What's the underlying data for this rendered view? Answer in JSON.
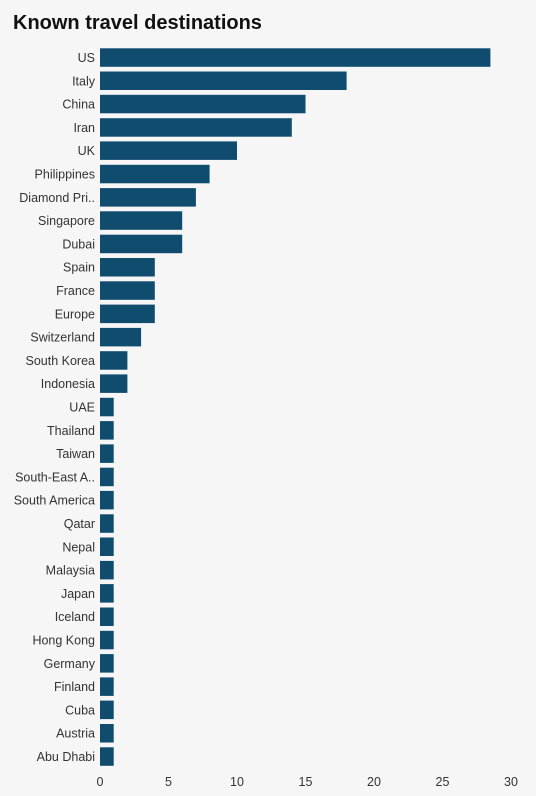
{
  "chart_data": {
    "type": "bar",
    "orientation": "horizontal",
    "title": "Known travel destinations",
    "xlabel": "",
    "ylabel": "",
    "xlim": [
      0,
      30
    ],
    "xticks": [
      "0",
      "5",
      "10",
      "15",
      "20",
      "25",
      "30"
    ],
    "grid": false,
    "bar_color": "#0f4c6e",
    "categories": [
      "US",
      "Italy",
      "China",
      "Iran",
      "UK",
      "Philippines",
      "Diamond Pri..",
      "Singapore",
      "Dubai",
      "Spain",
      "France",
      "Europe",
      "Switzerland",
      "South Korea",
      "Indonesia",
      "UAE",
      "Thailand",
      "Taiwan",
      "South-East A..",
      "South America",
      "Qatar",
      "Nepal",
      "Malaysia",
      "Japan",
      "Iceland",
      "Hong Kong",
      "Germany",
      "Finland",
      "Cuba",
      "Austria",
      "Abu Dhabi"
    ],
    "values": [
      28.5,
      18,
      15,
      14,
      10,
      8,
      7,
      6,
      6,
      4,
      4,
      4,
      3,
      2,
      2,
      1,
      1,
      1,
      1,
      1,
      1,
      1,
      1,
      1,
      1,
      1,
      1,
      1,
      1,
      1,
      1
    ]
  }
}
